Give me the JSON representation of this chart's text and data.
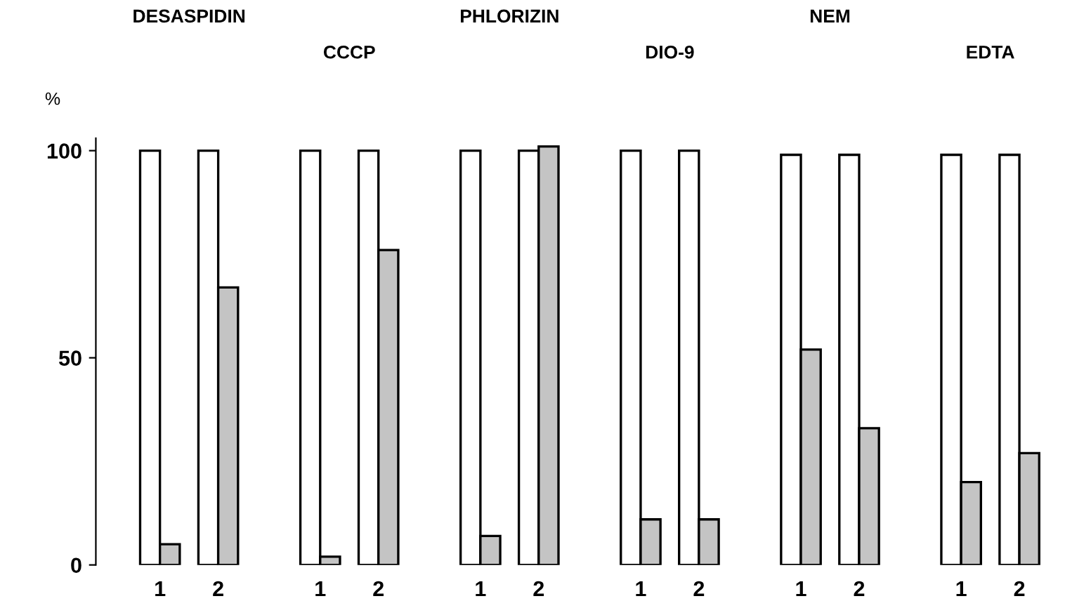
{
  "chart_data": {
    "type": "bar",
    "ylabel": "%",
    "categories": [
      "1",
      "2",
      "1",
      "2",
      "1",
      "2",
      "1",
      "2",
      "1",
      "2",
      "1",
      "2"
    ],
    "series": [
      {
        "color": "#ffffff",
        "values": [
          100,
          100,
          100,
          100,
          100,
          100,
          100,
          100,
          99,
          99,
          99,
          99
        ]
      },
      {
        "color": "#c4c4c4",
        "values": [
          5,
          67,
          2,
          76,
          7,
          101,
          11,
          11,
          52,
          33,
          20,
          27
        ]
      }
    ],
    "annotations": [
      "DESASPIDIN",
      "CCCP",
      "PHLORIZIN",
      "DIO-9",
      "NEM",
      "EDTA"
    ],
    "ylim": [
      0,
      103
    ],
    "yticks": [
      0,
      50,
      100
    ],
    "grid": false,
    "legend": false
  }
}
